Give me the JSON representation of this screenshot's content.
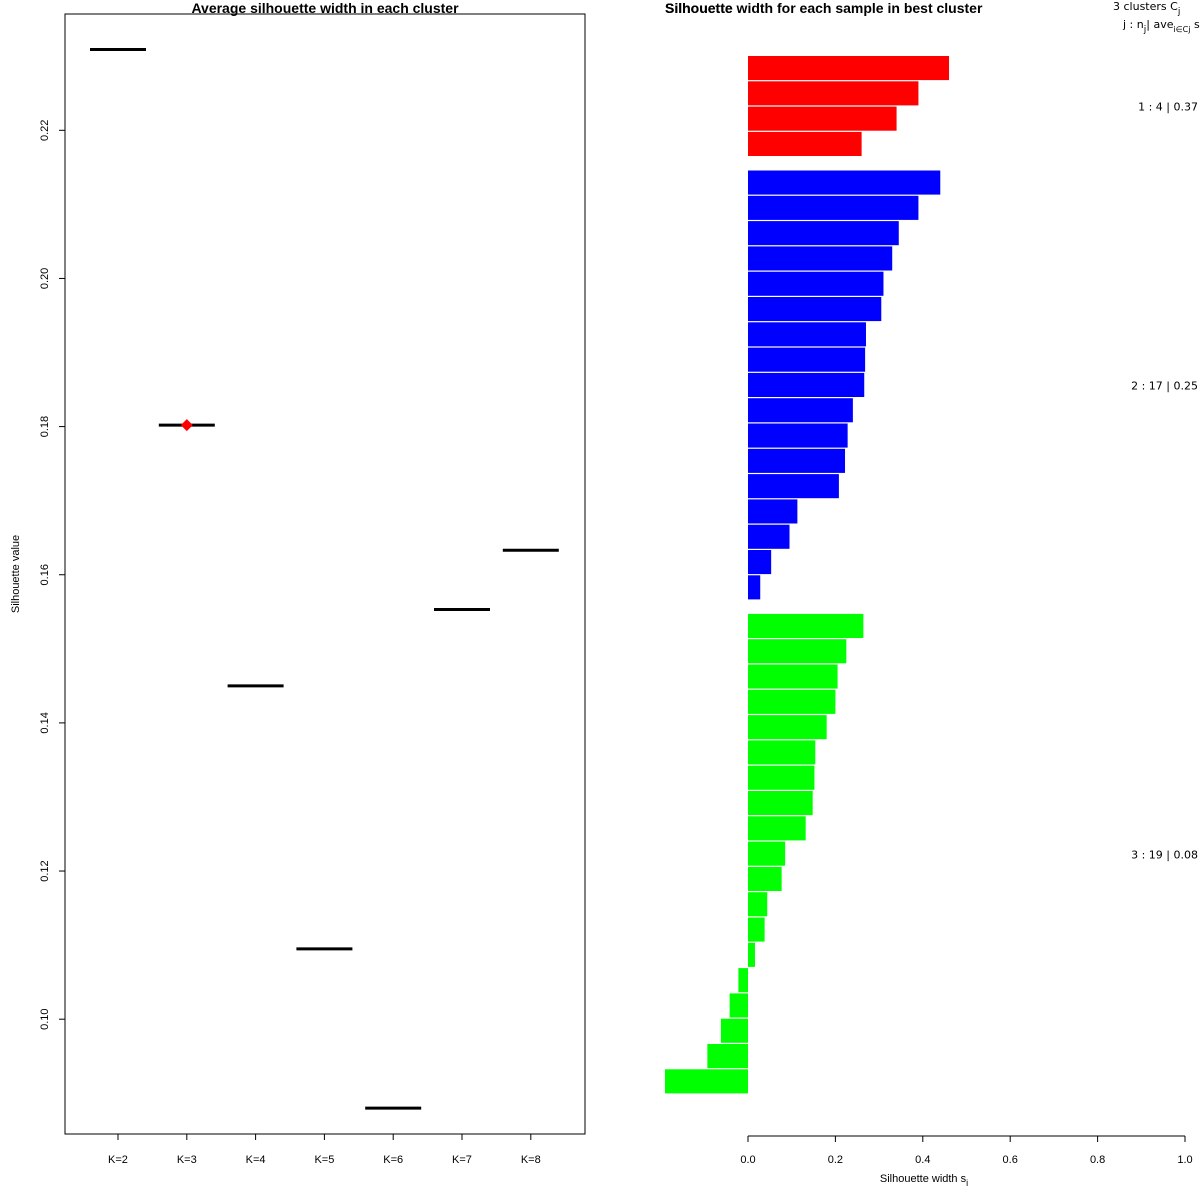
{
  "chart_data": [
    {
      "type": "scatter",
      "title": "Average silhouette width in each cluster",
      "xlabel": "",
      "ylabel": "Silhouette value",
      "categories": [
        "K=2",
        "K=3",
        "K=4",
        "K=5",
        "K=6",
        "K=7",
        "K=8"
      ],
      "values": [
        0.2309,
        0.1802,
        0.145,
        0.1095,
        0.088,
        0.1553,
        0.1633
      ],
      "best_index": 1,
      "best_marker_color": "#ff0000",
      "line_color": "#000000",
      "ylim": [
        0.0845,
        0.2357
      ],
      "yticks": [
        0.1,
        0.12,
        0.14,
        0.16,
        0.18,
        0.2,
        0.22
      ],
      "ytick_labels": [
        "0.10",
        "0.12",
        "0.14",
        "0.16",
        "0.18",
        "0.20",
        "0.22"
      ]
    },
    {
      "type": "bar",
      "orientation": "horizontal",
      "title": "Silhouette width for each sample in best cluster",
      "title_overlap": "Silhouette",
      "xlabel": "Silhouette width s",
      "xlabel_subscript": "i",
      "xlim": [
        -0.19,
        1.0
      ],
      "xticks": [
        0.0,
        0.2,
        0.4,
        0.6,
        0.8,
        1.0
      ],
      "xtick_labels": [
        "0.0",
        "0.2",
        "0.4",
        "0.6",
        "0.8",
        "1.0"
      ],
      "legend_header": {
        "line1": "3  clusters  C",
        "line1_sub": "j",
        "line2": "j :  n",
        "line2_sub": "j",
        "line2_rest": "| ave",
        "line2_sub2": "i∈Cj",
        "line2_end": " s"
      },
      "clusters": [
        {
          "name": "1",
          "label": "1 :  4  |  0.37",
          "color": "#ff0000",
          "values": [
            0.46,
            0.39,
            0.34,
            0.26
          ]
        },
        {
          "name": "2",
          "label": "2 :  17  |  0.25",
          "color": "#0000ff",
          "values": [
            0.44,
            0.39,
            0.345,
            0.33,
            0.31,
            0.305,
            0.27,
            0.268,
            0.266,
            0.24,
            0.228,
            0.222,
            0.208,
            0.113,
            0.095,
            0.053,
            0.028
          ]
        },
        {
          "name": "3",
          "label": "3 :  19  |  0.08",
          "color": "#00ff00",
          "values": [
            0.264,
            0.225,
            0.205,
            0.2,
            0.18,
            0.154,
            0.152,
            0.148,
            0.132,
            0.085,
            0.077,
            0.044,
            0.038,
            0.016,
            -0.022,
            -0.042,
            -0.062,
            -0.093,
            -0.19
          ]
        }
      ]
    }
  ]
}
